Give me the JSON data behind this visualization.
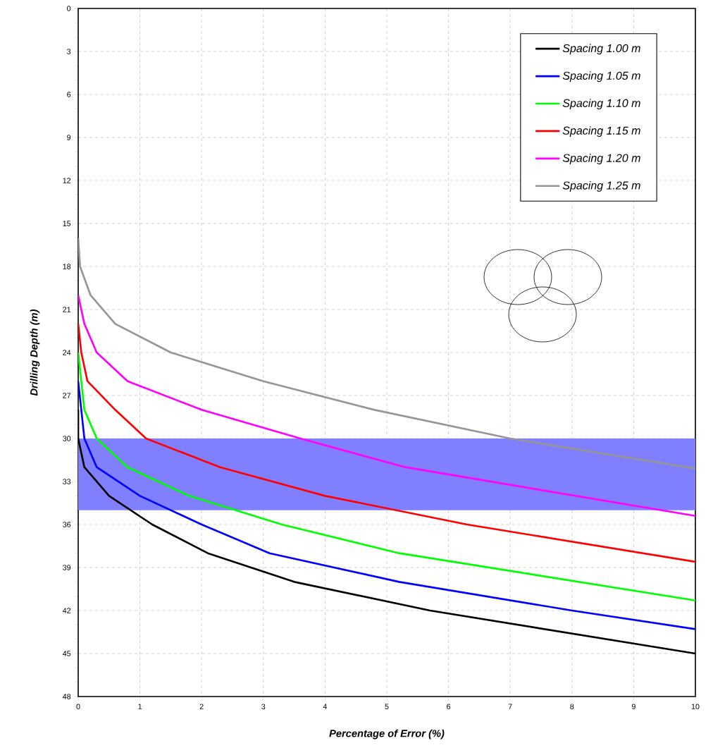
{
  "chart_data": {
    "type": "line",
    "xlabel": "Percentage of Error  (%)",
    "ylabel": "Drilling  Depth  (m)",
    "xlim": [
      0,
      10
    ],
    "xticks": [
      0,
      1,
      2,
      3,
      4,
      5,
      6,
      7,
      8,
      9,
      10
    ],
    "ylim": [
      48,
      0
    ],
    "yticks": [
      0,
      3,
      6,
      9,
      12,
      15,
      18,
      21,
      24,
      27,
      30,
      33,
      36,
      39,
      42,
      45,
      48
    ],
    "grid": true,
    "legend": "top right",
    "marker": "none",
    "line_style": "solid",
    "bands": [
      {
        "axis": "y",
        "from": 30,
        "to": 35,
        "color": "#8080ff"
      }
    ],
    "series": [
      {
        "name": "Spacing 1.00 m",
        "color": "#000000",
        "x": [
          0,
          0,
          0.1,
          0.5,
          1.2,
          2.1,
          3.5,
          5.7,
          10
        ],
        "values": [
          28,
          30,
          32,
          34,
          36,
          38,
          40,
          42,
          45
        ]
      },
      {
        "name": "Spacing 1.05 m",
        "color": "#0000ff",
        "x": [
          0,
          0.1,
          0.3,
          1.0,
          2.0,
          3.1,
          5.2,
          8.0,
          10
        ],
        "values": [
          26,
          30,
          32,
          34,
          36,
          38,
          40,
          42,
          43.3
        ]
      },
      {
        "name": "Spacing 1.10 m",
        "color": "#00ff00",
        "x": [
          0,
          0.1,
          0.3,
          0.8,
          1.8,
          3.3,
          5.2,
          10
        ],
        "values": [
          24,
          28,
          30,
          32,
          34,
          36,
          38,
          41.3
        ]
      },
      {
        "name": "Spacing 1.15 m",
        "color": "#ff0000",
        "x": [
          0,
          0.05,
          0.15,
          0.6,
          1.1,
          2.3,
          4.0,
          6.3,
          10
        ],
        "values": [
          22,
          24,
          26,
          28,
          30,
          32,
          34,
          36,
          38.6
        ]
      },
      {
        "name": "Spacing 1.20 m",
        "color": "#ff00ff",
        "x": [
          0,
          0.1,
          0.3,
          0.8,
          2.0,
          3.6,
          5.3,
          10
        ],
        "values": [
          20,
          22,
          24,
          26,
          28,
          30,
          32,
          35.4
        ]
      },
      {
        "name": "Spacing 1.25 m",
        "color": "#969696",
        "x": [
          0,
          0.03,
          0.2,
          0.6,
          1.5,
          3.0,
          4.8,
          7.0,
          10
        ],
        "values": [
          16,
          18,
          20,
          22,
          24,
          26,
          28,
          30,
          32.1
        ]
      }
    ]
  }
}
